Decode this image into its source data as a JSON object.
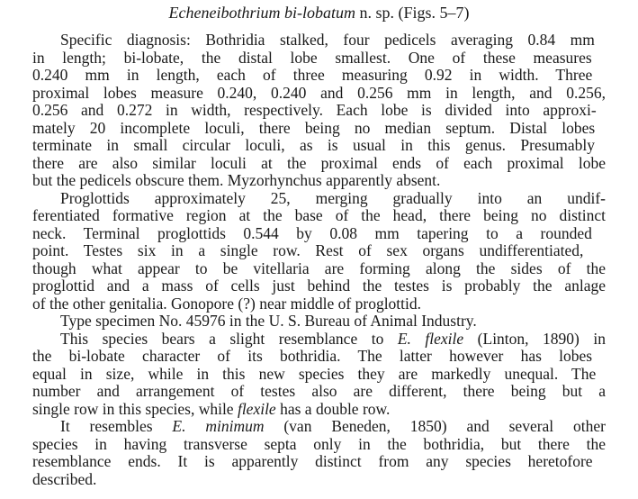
{
  "title": [
    {
      "t": "Echeneibothrium bi-lobatum",
      "i": true
    },
    {
      "t": " n. sp. (Figs. 5–7)",
      "i": false
    }
  ],
  "paragraphs": [
    {
      "lines": [
        [
          {
            "t": "Specific diagnosis:  Bothridia stalked, four pedicels averaging 0.84 mm"
          }
        ],
        [
          {
            "t": "in length; bi-lobate, the distal lobe smallest.  One of these measures"
          }
        ],
        [
          {
            "t": "0.240 mm in length, each of three measuring 0.92 in width.  Three"
          }
        ],
        [
          {
            "t": "proximal lobes measure 0.240, 0.240 and 0.256 mm in length, and 0.256,"
          }
        ],
        [
          {
            "t": "0.256 and 0.272 in width, respectively.  Each lobe is divided into approxi-"
          }
        ],
        [
          {
            "t": "mately 20 incomplete loculi, there being no median septum.  Distal lobes"
          }
        ],
        [
          {
            "t": "terminate in small circular loculi, as is usual in this genus.  Presumably"
          }
        ],
        [
          {
            "t": "there are also similar loculi at the proximal ends of each proximal lobe"
          }
        ],
        [
          {
            "t": "but the pedicels obscure them.  Myzorhynchus apparently absent."
          }
        ]
      ]
    },
    {
      "lines": [
        [
          {
            "t": "Proglottids approximately 25, merging gradually into an undif-"
          }
        ],
        [
          {
            "t": "ferentiated formative region at the base of the head, there being no distinct"
          }
        ],
        [
          {
            "t": "neck.  Terminal proglottids 0.544 by 0.08 mm tapering to a rounded"
          }
        ],
        [
          {
            "t": "point.  Testes six in a single row.  Rest of sex organs undifferentiated,"
          }
        ],
        [
          {
            "t": "though what appear to be vitellaria are forming along the sides of the"
          }
        ],
        [
          {
            "t": "proglottid and a mass of cells just behind the testes is probably the anlage"
          }
        ],
        [
          {
            "t": "of the other genitalia.  Gonopore (?) near middle of proglottid."
          }
        ]
      ]
    },
    {
      "lines": [
        [
          {
            "t": "Type specimen No. 45976 in the U. S. Bureau of Animal Industry."
          }
        ]
      ]
    },
    {
      "lines": [
        [
          {
            "t": "This species bears a slight resemblance to "
          },
          {
            "t": "E. flexile",
            "i": true
          },
          {
            "t": " (Linton, 1890) in"
          }
        ],
        [
          {
            "t": "the bi-lobate character of its bothridia.  The latter however has lobes"
          }
        ],
        [
          {
            "t": "equal in size, while in this new species they are markedly unequal.  The"
          }
        ],
        [
          {
            "t": "number and arrangement of testes also are different, there being but a"
          }
        ],
        [
          {
            "t": "single row in this species, while "
          },
          {
            "t": "flexile",
            "i": true
          },
          {
            "t": " has a double row."
          }
        ]
      ]
    },
    {
      "lines": [
        [
          {
            "t": "It resembles "
          },
          {
            "t": "E. minimum",
            "i": true
          },
          {
            "t": " (van Beneden, 1850) and several other"
          }
        ],
        [
          {
            "t": "species in having transverse septa only in the bothridia, but there the"
          }
        ],
        [
          {
            "t": "resemblance ends.  It is apparently distinct from any species heretofore"
          }
        ],
        [
          {
            "t": "described."
          }
        ]
      ]
    }
  ]
}
